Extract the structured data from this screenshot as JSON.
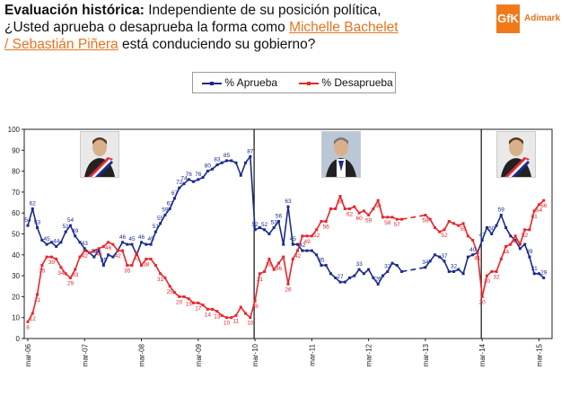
{
  "header": {
    "lead_bold": "Evaluación histórica:",
    "line1_rest": " Independiente de su posición política,",
    "line2_start": "¿Usted aprueba o desaprueba la forma como ",
    "names_a": "Michelle Bachelet",
    "names_b": "/ Sebastián Piñera",
    "line3_end": " está conduciendo su gobierno?"
  },
  "logo": {
    "mark": "GfK",
    "name": "Adimark"
  },
  "colors": {
    "approve": "#1a2a8c",
    "disapprove": "#e8262b",
    "accent": "#e8741f"
  },
  "chart_data": {
    "type": "line",
    "title": "Evaluación histórica",
    "xlabel": "",
    "ylabel": "",
    "ylim": [
      0,
      100
    ],
    "yticks": [
      0,
      10,
      20,
      30,
      40,
      50,
      60,
      70,
      80,
      90,
      100
    ],
    "grid": false,
    "legend_position": "top-center",
    "x_tick_labels": [
      "mar-06",
      "mar-07",
      "mar-08",
      "mar-09",
      "mar-10",
      "mar-11",
      "mar-12",
      "mar-13",
      "mar-14",
      "mar-15"
    ],
    "x_months": [
      0,
      12,
      24,
      36,
      48,
      60,
      72,
      84,
      96,
      108
    ],
    "x_range": [
      0,
      110
    ],
    "government_breaks_month": [
      48,
      96
    ],
    "series": [
      {
        "name": "% Aprueba",
        "points": [
          [
            0,
            54
          ],
          [
            1,
            62
          ],
          [
            2,
            53
          ],
          [
            3,
            47
          ],
          [
            4,
            45
          ],
          [
            5,
            46
          ],
          [
            6,
            44
          ],
          [
            7,
            46
          ],
          [
            8,
            51
          ],
          [
            9,
            54
          ],
          [
            10,
            49
          ],
          [
            11,
            46
          ],
          [
            12,
            43
          ],
          [
            13,
            41
          ],
          [
            14,
            39
          ],
          [
            15,
            42
          ],
          [
            16,
            35
          ],
          [
            17,
            40
          ],
          [
            18,
            39
          ],
          [
            19,
            42
          ],
          [
            20,
            46
          ],
          [
            21,
            45
          ],
          [
            22,
            45
          ],
          [
            23,
            40
          ],
          [
            24,
            46
          ],
          [
            25,
            45
          ],
          [
            26,
            45
          ],
          [
            27,
            51
          ],
          [
            28,
            55
          ],
          [
            29,
            59
          ],
          [
            30,
            62
          ],
          [
            31,
            67
          ],
          [
            32,
            72
          ],
          [
            33,
            74
          ],
          [
            34,
            76
          ],
          [
            35,
            75
          ],
          [
            36,
            76
          ],
          [
            37,
            77
          ],
          [
            38,
            80
          ],
          [
            39,
            81
          ],
          [
            40,
            83
          ],
          [
            41,
            84
          ],
          [
            42,
            85
          ],
          [
            43,
            85
          ],
          [
            44,
            84
          ],
          [
            45,
            78
          ],
          [
            46,
            84
          ],
          [
            47,
            87
          ],
          [
            48,
            52
          ],
          [
            49,
            53
          ],
          [
            50,
            52
          ],
          [
            51,
            50
          ],
          [
            52,
            53
          ],
          [
            53,
            56
          ],
          [
            54,
            45
          ],
          [
            55,
            63
          ],
          [
            56,
            45
          ],
          [
            57,
            45
          ],
          [
            58,
            42
          ],
          [
            59,
            42
          ],
          [
            60,
            42
          ],
          [
            61,
            40
          ],
          [
            62,
            35
          ],
          [
            63,
            35
          ],
          [
            64,
            31
          ],
          [
            65,
            29
          ],
          [
            66,
            27
          ],
          [
            67,
            27
          ],
          [
            68,
            29
          ],
          [
            69,
            30
          ],
          [
            70,
            33
          ],
          [
            71,
            31
          ],
          [
            72,
            33
          ],
          [
            73,
            29
          ],
          [
            74,
            26
          ],
          [
            75,
            30
          ],
          [
            76,
            32
          ],
          [
            77,
            36
          ],
          [
            78,
            35
          ],
          [
            79,
            32
          ],
          [
            84,
            34
          ],
          [
            85,
            37
          ],
          [
            86,
            40
          ],
          [
            87,
            39
          ],
          [
            88,
            37
          ],
          [
            89,
            32
          ],
          [
            90,
            32
          ],
          [
            91,
            33
          ],
          [
            92,
            31
          ],
          [
            93,
            39
          ],
          [
            94,
            40
          ],
          [
            95,
            41
          ],
          [
            96,
            47
          ],
          [
            97,
            53
          ],
          [
            98,
            50
          ],
          [
            99,
            54
          ],
          [
            100,
            59
          ],
          [
            101,
            53
          ],
          [
            102,
            49
          ],
          [
            103,
            47
          ],
          [
            104,
            43
          ],
          [
            105,
            45
          ],
          [
            106,
            39
          ],
          [
            107,
            31
          ],
          [
            108,
            31
          ],
          [
            109,
            29
          ]
        ]
      },
      {
        "name": "% Desaprueba",
        "points": [
          [
            0,
            8
          ],
          [
            1,
            12
          ],
          [
            2,
            21
          ],
          [
            3,
            35
          ],
          [
            4,
            39
          ],
          [
            5,
            39
          ],
          [
            6,
            38
          ],
          [
            7,
            34
          ],
          [
            8,
            31
          ],
          [
            9,
            29
          ],
          [
            10,
            33
          ],
          [
            11,
            39
          ],
          [
            12,
            42
          ],
          [
            13,
            41
          ],
          [
            14,
            42
          ],
          [
            15,
            43
          ],
          [
            16,
            44
          ],
          [
            17,
            46
          ],
          [
            18,
            45
          ],
          [
            19,
            42
          ],
          [
            20,
            42
          ],
          [
            21,
            35
          ],
          [
            22,
            35
          ],
          [
            23,
            41
          ],
          [
            24,
            35
          ],
          [
            25,
            38
          ],
          [
            26,
            38
          ],
          [
            27,
            35
          ],
          [
            28,
            31
          ],
          [
            29,
            29
          ],
          [
            30,
            25
          ],
          [
            31,
            22
          ],
          [
            32,
            20
          ],
          [
            33,
            20
          ],
          [
            34,
            19
          ],
          [
            35,
            17
          ],
          [
            36,
            17
          ],
          [
            37,
            16
          ],
          [
            38,
            14
          ],
          [
            39,
            14
          ],
          [
            40,
            13
          ],
          [
            41,
            11
          ],
          [
            42,
            10
          ],
          [
            43,
            10
          ],
          [
            44,
            11
          ],
          [
            45,
            15
          ],
          [
            46,
            12
          ],
          [
            47,
            10
          ],
          [
            48,
            18
          ],
          [
            49,
            31
          ],
          [
            50,
            32
          ],
          [
            51,
            38
          ],
          [
            52,
            33
          ],
          [
            53,
            36
          ],
          [
            54,
            39
          ],
          [
            55,
            26
          ],
          [
            56,
            38
          ],
          [
            57,
            42
          ],
          [
            58,
            49
          ],
          [
            59,
            49
          ],
          [
            60,
            49
          ],
          [
            61,
            52
          ],
          [
            62,
            56
          ],
          [
            63,
            56
          ],
          [
            64,
            62
          ],
          [
            65,
            62
          ],
          [
            66,
            68
          ],
          [
            67,
            62
          ],
          [
            68,
            62
          ],
          [
            69,
            63
          ],
          [
            70,
            60
          ],
          [
            71,
            61
          ],
          [
            72,
            59
          ],
          [
            73,
            62
          ],
          [
            74,
            66
          ],
          [
            75,
            58
          ],
          [
            76,
            58
          ],
          [
            77,
            58
          ],
          [
            78,
            57
          ],
          [
            79,
            57
          ],
          [
            84,
            59
          ],
          [
            85,
            57
          ],
          [
            86,
            53
          ],
          [
            87,
            51
          ],
          [
            88,
            52
          ],
          [
            89,
            56
          ],
          [
            90,
            55
          ],
          [
            91,
            54
          ],
          [
            92,
            55
          ],
          [
            93,
            49
          ],
          [
            94,
            47
          ],
          [
            95,
            41
          ],
          [
            96,
            20
          ],
          [
            97,
            30
          ],
          [
            98,
            32
          ],
          [
            99,
            32
          ],
          [
            100,
            38
          ],
          [
            101,
            44
          ],
          [
            102,
            45
          ],
          [
            103,
            49
          ],
          [
            104,
            45
          ],
          [
            105,
            52
          ],
          [
            106,
            52
          ],
          [
            107,
            61
          ],
          [
            108,
            64
          ],
          [
            109,
            66
          ]
        ]
      }
    ],
    "data_labels_approve": [
      [
        0,
        54
      ],
      [
        1,
        62
      ],
      [
        2,
        53
      ],
      [
        4,
        45
      ],
      [
        6,
        44
      ],
      [
        8,
        51
      ],
      [
        9,
        54
      ],
      [
        10,
        49
      ],
      [
        12,
        43
      ],
      [
        14,
        39
      ],
      [
        16,
        35
      ],
      [
        20,
        46
      ],
      [
        22,
        45
      ],
      [
        24,
        46
      ],
      [
        26,
        45
      ],
      [
        27,
        51
      ],
      [
        28,
        55
      ],
      [
        29,
        59
      ],
      [
        30,
        62
      ],
      [
        31,
        67
      ],
      [
        32,
        72
      ],
      [
        33,
        74
      ],
      [
        34,
        76
      ],
      [
        36,
        76
      ],
      [
        38,
        80
      ],
      [
        40,
        83
      ],
      [
        42,
        85
      ],
      [
        47,
        87
      ],
      [
        48,
        52
      ],
      [
        50,
        52
      ],
      [
        52,
        53
      ],
      [
        53,
        56
      ],
      [
        55,
        63
      ],
      [
        56,
        45
      ],
      [
        58,
        42
      ],
      [
        62,
        35
      ],
      [
        66,
        27
      ],
      [
        70,
        33
      ],
      [
        74,
        26
      ],
      [
        76,
        32
      ],
      [
        84,
        34
      ],
      [
        88,
        37
      ],
      [
        90,
        32
      ],
      [
        94,
        40
      ],
      [
        96,
        47
      ],
      [
        98,
        50
      ],
      [
        100,
        59
      ],
      [
        106,
        39
      ],
      [
        107,
        31
      ],
      [
        109,
        29
      ]
    ],
    "data_labels_disapprove": [
      [
        0,
        8
      ],
      [
        1,
        12
      ],
      [
        2,
        21
      ],
      [
        3,
        35
      ],
      [
        5,
        39
      ],
      [
        7,
        34
      ],
      [
        9,
        29
      ],
      [
        10,
        33
      ],
      [
        12,
        42
      ],
      [
        15,
        43
      ],
      [
        17,
        46
      ],
      [
        19,
        42
      ],
      [
        21,
        35
      ],
      [
        23,
        41
      ],
      [
        25,
        38
      ],
      [
        28,
        31
      ],
      [
        30,
        25
      ],
      [
        32,
        20
      ],
      [
        34,
        19
      ],
      [
        36,
        17
      ],
      [
        38,
        14
      ],
      [
        40,
        13
      ],
      [
        42,
        10
      ],
      [
        44,
        11
      ],
      [
        47,
        10
      ],
      [
        48,
        18
      ],
      [
        49,
        31
      ],
      [
        51,
        38
      ],
      [
        53,
        36
      ],
      [
        55,
        26
      ],
      [
        57,
        42
      ],
      [
        59,
        49
      ],
      [
        61,
        52
      ],
      [
        63,
        56
      ],
      [
        66,
        68
      ],
      [
        68,
        62
      ],
      [
        70,
        60
      ],
      [
        72,
        59
      ],
      [
        74,
        66
      ],
      [
        76,
        58
      ],
      [
        78,
        57
      ],
      [
        84,
        59
      ],
      [
        88,
        52
      ],
      [
        92,
        55
      ],
      [
        95,
        41
      ],
      [
        96,
        20
      ],
      [
        97,
        30
      ],
      [
        99,
        32
      ],
      [
        101,
        44
      ],
      [
        103,
        49
      ],
      [
        105,
        52
      ],
      [
        107,
        61
      ],
      [
        108,
        64
      ],
      [
        109,
        66
      ]
    ]
  },
  "portraits": [
    {
      "name": "Michelle Bachelet",
      "month": 15
    },
    {
      "name": "Sebastián Piñera",
      "month": 66
    },
    {
      "name": "Michelle Bachelet",
      "month": 103
    }
  ]
}
